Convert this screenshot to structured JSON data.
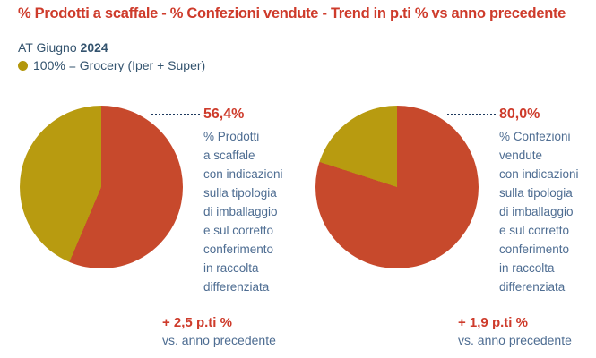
{
  "header": {
    "title": "% Prodotti a scaffale - % Confezioni vendute - Trend in p.ti % vs anno precedente",
    "period_label": "AT Giugno",
    "period_year": "2024",
    "legend_text": "100% = Grocery (Iper + Super)"
  },
  "colors": {
    "accent_red": "#ce3b2b",
    "pie_red": "#c7492c",
    "pie_olive": "#b89b10",
    "subtitle_blue": "#33536e",
    "body_blue": "#4e6d92",
    "connector_navy": "#1e3a5f"
  },
  "charts": [
    {
      "value": "56,4%",
      "description": "% Prodotti\na scaffale\ncon indicazioni\nsulla tipologia\ndi imballaggio\ne sul corretto\nconferimento\nin raccolta\ndifferenziata",
      "trend_value": "+ 2,5 p.ti %",
      "trend_caption": "vs. anno precedente"
    },
    {
      "value": "80,0%",
      "description": "% Confezioni\nvendute\ncon indicazioni\nsulla tipologia\ndi imballaggio\ne sul corretto\nconferimento\nin raccolta\ndifferenziata",
      "trend_value": "+ 1,9 p.ti %",
      "trend_caption": "vs. anno precedente"
    }
  ],
  "chart_data": [
    {
      "type": "pie",
      "title": "% Prodotti a scaffale con indicazioni sulla tipologia di imballaggio e sul corretto conferimento in raccolta differenziata",
      "annotation": "56,4%",
      "trend": "+ 2,5 p.ti % vs. anno precedente",
      "start_angle_deg": 0,
      "direction": "clockwise",
      "slices": [
        {
          "label": "% Prodotti a scaffale con indicazioni sulla tipologia di imballaggio e sul corretto conferimento in raccolta differenziata",
          "value": 56.4,
          "color": "#c7492c"
        },
        {
          "label": "",
          "value": 43.6,
          "color": "#b89b10"
        }
      ]
    },
    {
      "type": "pie",
      "title": "% Confezioni vendute con indicazioni sulla tipologia di imballaggio e sul corretto conferimento in raccolta differenziata",
      "annotation": "80,0%",
      "trend": "+ 1,9 p.ti % vs. anno precedente",
      "start_angle_deg": 0,
      "direction": "clockwise",
      "slices": [
        {
          "label": "% Confezioni vendute con indicazioni sulla tipologia di imballaggio e sul corretto conferimento in raccolta differenziata",
          "value": 80.0,
          "color": "#c7492c"
        },
        {
          "label": "",
          "value": 20.0,
          "color": "#b89b10"
        }
      ]
    }
  ]
}
